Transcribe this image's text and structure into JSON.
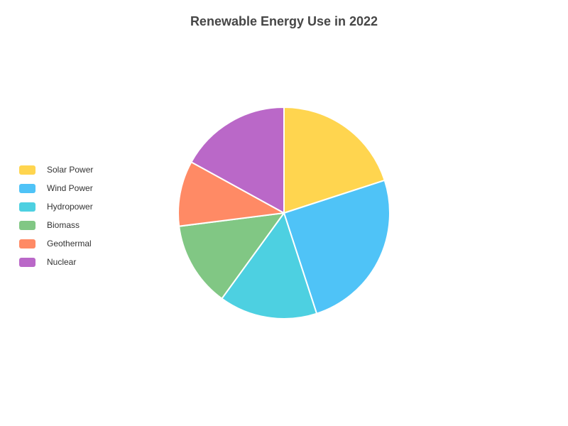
{
  "chart_data": {
    "type": "pie",
    "title": "Renewable Energy Use in 2022",
    "legend_position": "left",
    "slices": [
      {
        "name": "Solar Power",
        "value": 20,
        "color": "#FFD54F"
      },
      {
        "name": "Wind Power",
        "value": 25,
        "color": "#4FC3F7"
      },
      {
        "name": "Hydropower",
        "value": 15,
        "color": "#4DD0E1"
      },
      {
        "name": "Biomass",
        "value": 13,
        "color": "#81C784"
      },
      {
        "name": "Geothermal",
        "value": 10,
        "color": "#FF8A65"
      },
      {
        "name": "Nuclear",
        "value": 17,
        "color": "#BA68C8"
      }
    ]
  }
}
